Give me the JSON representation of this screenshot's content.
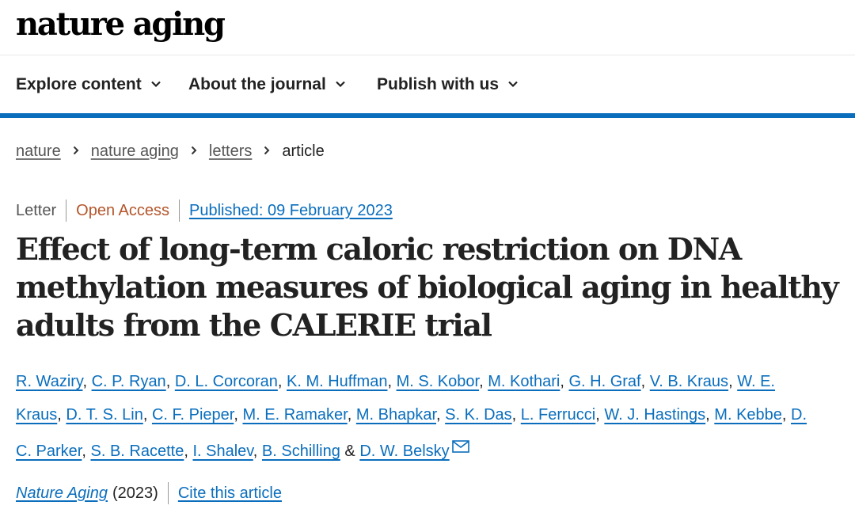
{
  "header": {
    "logo_text": "nature aging"
  },
  "nav": {
    "items": [
      {
        "label": "Explore content"
      },
      {
        "label": "About the journal"
      },
      {
        "label": "Publish with us"
      }
    ]
  },
  "breadcrumb": {
    "items": [
      "nature",
      "nature aging",
      "letters"
    ],
    "current": "article"
  },
  "article": {
    "type": "Letter",
    "access": "Open Access",
    "published": "Published: 09 February 2023",
    "title": "Effect of long-term caloric restriction on DNA methylation measures of biological aging in healthy adults from the CALERIE trial",
    "authors": [
      "R. Waziry",
      "C. P. Ryan",
      "D. L. Corcoran",
      "K. M. Huffman",
      "M. S. Kobor",
      "M. Kothari",
      "G. H. Graf",
      "V. B. Kraus",
      "W. E. Kraus",
      "D. T. S. Lin",
      "C. F. Pieper",
      "M. E. Ramaker",
      "M. Bhapkar",
      "S. K. Das",
      "L. Ferrucci",
      "W. J. Hastings",
      "M. Kebbe",
      "D. C. Parker",
      "S. B. Racette",
      "I. Shalev",
      "B. Schilling",
      "D. W. Belsky"
    ],
    "journal": "Nature Aging",
    "year": "(2023)",
    "cite_label": "Cite this article"
  },
  "icons": {
    "chevron": "chevron-down-icon",
    "breadcrumb_separator": "chevron-right-icon",
    "mail": "envelope-icon"
  },
  "colors": {
    "link": "#0a6ebd",
    "open_access": "#b4552a",
    "rule": "#0a6ebd"
  }
}
